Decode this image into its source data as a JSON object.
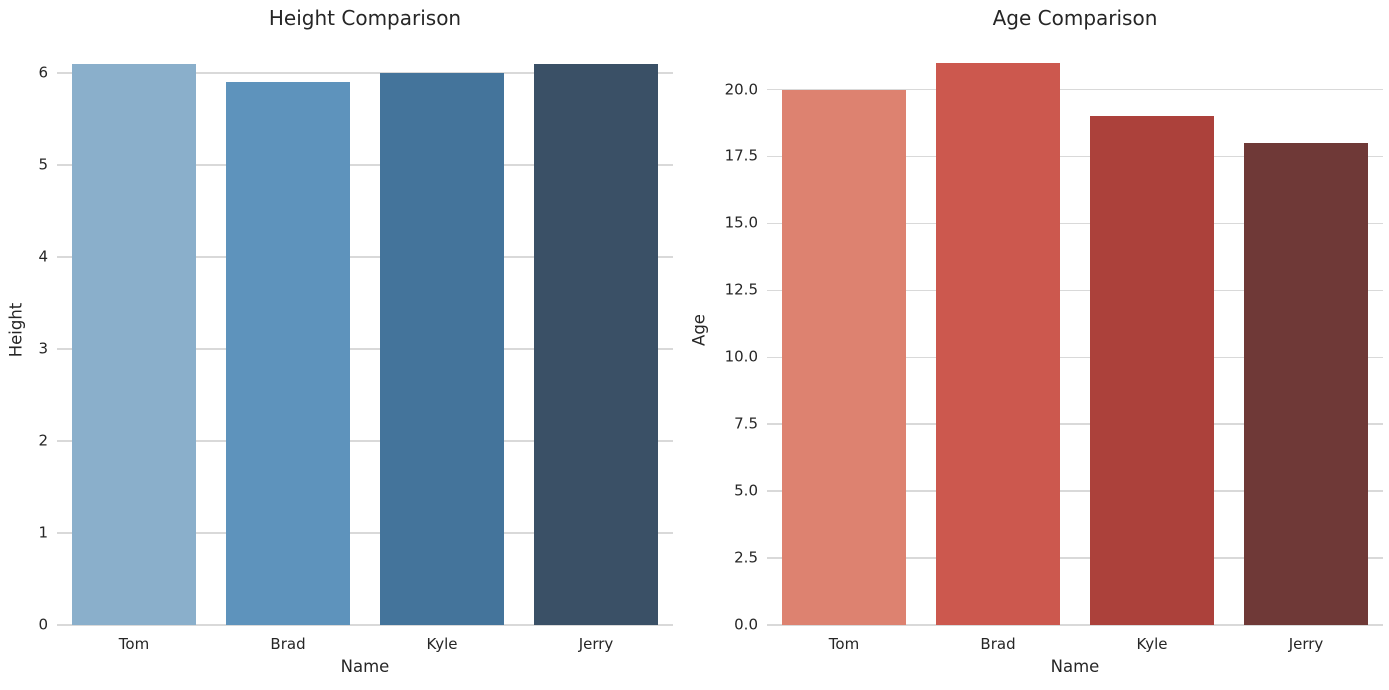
{
  "figure": {
    "background": "#ffffff",
    "text_color": "#262626",
    "grid_color": "#d9d9d9"
  },
  "chart_data": [
    {
      "type": "bar",
      "title": "Height Comparison",
      "xlabel": "Name",
      "ylabel": "Height",
      "categories": [
        "Tom",
        "Brad",
        "Kyle",
        "Jerry"
      ],
      "values": [
        6.1,
        5.9,
        6.0,
        6.1
      ],
      "yticks": [
        0,
        1,
        2,
        3,
        4,
        5,
        6
      ],
      "ytick_labels": [
        "0",
        "1",
        "2",
        "3",
        "4",
        "5",
        "6"
      ],
      "ylim": [
        0,
        6.4
      ],
      "bar_colors": [
        "#8aafcb",
        "#5e93bc",
        "#44749b",
        "#3a5066"
      ],
      "bar_width_fraction": 0.8,
      "grid": true,
      "legend": false
    },
    {
      "type": "bar",
      "title": "Age Comparison",
      "xlabel": "Name",
      "ylabel": "Age",
      "categories": [
        "Tom",
        "Brad",
        "Kyle",
        "Jerry"
      ],
      "values": [
        20,
        21,
        19,
        18
      ],
      "yticks": [
        0,
        2.5,
        5,
        7.5,
        10,
        12.5,
        15,
        17.5,
        20
      ],
      "ytick_labels": [
        "0.0",
        "2.5",
        "5.0",
        "7.5",
        "10.0",
        "12.5",
        "15.0",
        "17.5",
        "20.0"
      ],
      "ylim": [
        0,
        22.0
      ],
      "bar_colors": [
        "#dd8270",
        "#cc584e",
        "#ac413b",
        "#6f3937"
      ],
      "bar_width_fraction": 0.8,
      "grid": true,
      "legend": false
    }
  ]
}
